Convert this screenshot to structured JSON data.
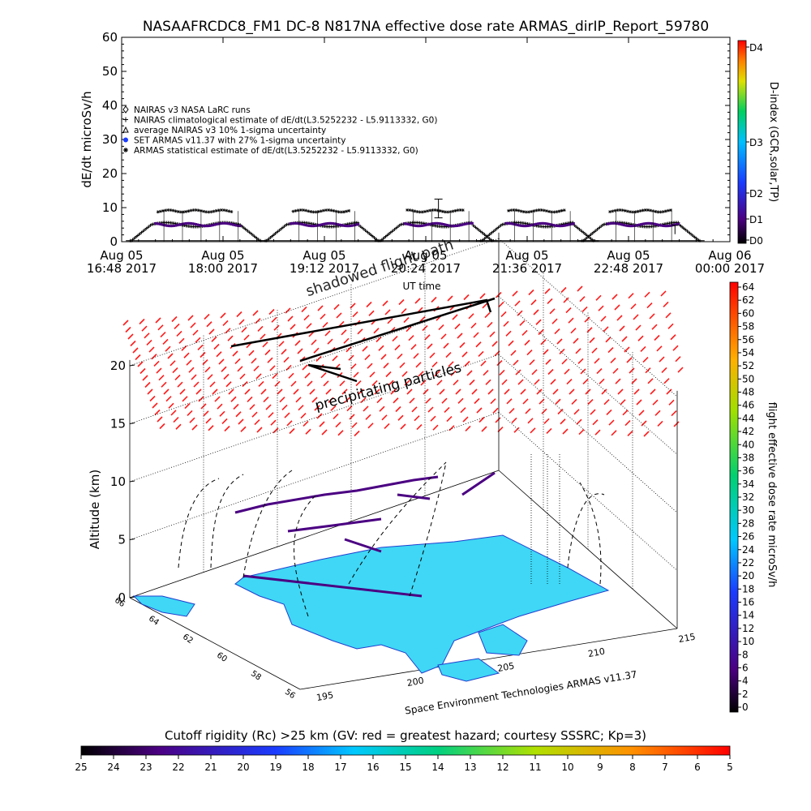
{
  "title": "NASAAFRCDC8_FM1 DC-8   N817NA effective dose rate ARMAS_dirIP_Report_59780",
  "colors": {
    "bg": "#ffffff",
    "axis": "#000000",
    "trace_purple": "#4b0082",
    "map_fill": "#3fd7f5",
    "map_edge": "#1f3fd0",
    "hazard_red": "#ff1a1a"
  },
  "chart_data": [
    {
      "type": "line",
      "name": "time-series",
      "ylabel": "dE/dt microSv/h",
      "xlabel": "UT time",
      "ylim": [
        0,
        60
      ],
      "yticks": [
        0,
        10,
        20,
        30,
        40,
        50,
        60
      ],
      "xtick_labels": [
        [
          "Aug 05",
          "16:48 2017"
        ],
        [
          "Aug 05",
          "18:00 2017"
        ],
        [
          "Aug 05",
          "19:12 2017"
        ],
        [
          "Aug 05",
          "20:24 2017"
        ],
        [
          "Aug 05",
          "21:36 2017"
        ],
        [
          "Aug 05",
          "22:48 2017"
        ],
        [
          "Aug 06",
          "00:00 2017"
        ]
      ],
      "legend": [
        {
          "symbol": "diamond",
          "text": "NAIRAS v3 NASA LaRC runs"
        },
        {
          "symbol": "plus",
          "text": "NAIRAS climatological estimate of dE/dt(L3.5252232 - L5.9113332, G0)"
        },
        {
          "symbol": "triangle",
          "text": "average NAIRAS v3 10% 1-sigma uncertainty"
        },
        {
          "symbol": "dot",
          "text": "SET ARMAS v11.37 with 27% 1-sigma uncertainty"
        },
        {
          "symbol": "asterisk",
          "text": "ARMAS statistical estimate of dE/dt(L3.5252232 - L5.9113332, G0)"
        }
      ],
      "legend_position": "top-left",
      "series": [
        {
          "role": "climatological estimate",
          "x_hours": [
            16.9,
            17.2,
            17.4,
            17.7,
            18.5,
            18.8,
            19.1,
            19.4,
            20.0,
            20.4,
            20.8,
            21.4,
            21.8,
            22.0,
            22.4,
            22.8
          ],
          "values": [
            1,
            3,
            5,
            6,
            6,
            5,
            5,
            1,
            5,
            6,
            1,
            5,
            1,
            6,
            5,
            3
          ]
        }
      ],
      "annotations_overlay": [
        "shadowed flight path",
        "UT time"
      ]
    },
    {
      "type": "scatter",
      "name": "3d-altitude",
      "ylabel": "Altitude (km)",
      "zticks": [
        0,
        5,
        10,
        15,
        20
      ],
      "lat_ticks": [
        "66",
        "64",
        "62",
        "60",
        "58",
        "56"
      ],
      "lon_ticks": [
        "195",
        "200",
        "205",
        "210",
        "215"
      ],
      "annotations": [
        "precipitating particles",
        "shadowed flight path"
      ],
      "credit": "Space Environment Technologies ARMAS v11.37"
    }
  ],
  "side_colorbar_top": {
    "label": "D-index (GCR,solar,TP)",
    "ticks": [
      "D4",
      "D3",
      "D2",
      "D1",
      "D0"
    ]
  },
  "side_colorbar_bottom": {
    "label": "flight effective dose rate microSv/h",
    "ticks": [
      "64",
      "62",
      "60",
      "58",
      "56",
      "54",
      "52",
      "50",
      "48",
      "46",
      "44",
      "42",
      "40",
      "38",
      "36",
      "34",
      "32",
      "30",
      "28",
      "26",
      "24",
      "22",
      "20",
      "18",
      "16",
      "14",
      "12",
      "10",
      "8",
      "6",
      "4",
      "2",
      "0"
    ]
  },
  "bottom_colorbar": {
    "title": "Cutoff rigidity (Rc) >25 km (GV: red = greatest hazard; courtesy SSSRC; Kp=3)",
    "ticks": [
      "25",
      "24",
      "23",
      "22",
      "21",
      "20",
      "19",
      "18",
      "17",
      "16",
      "15",
      "14",
      "13",
      "12",
      "11",
      "10",
      "9",
      "8",
      "7",
      "6",
      "5"
    ]
  }
}
